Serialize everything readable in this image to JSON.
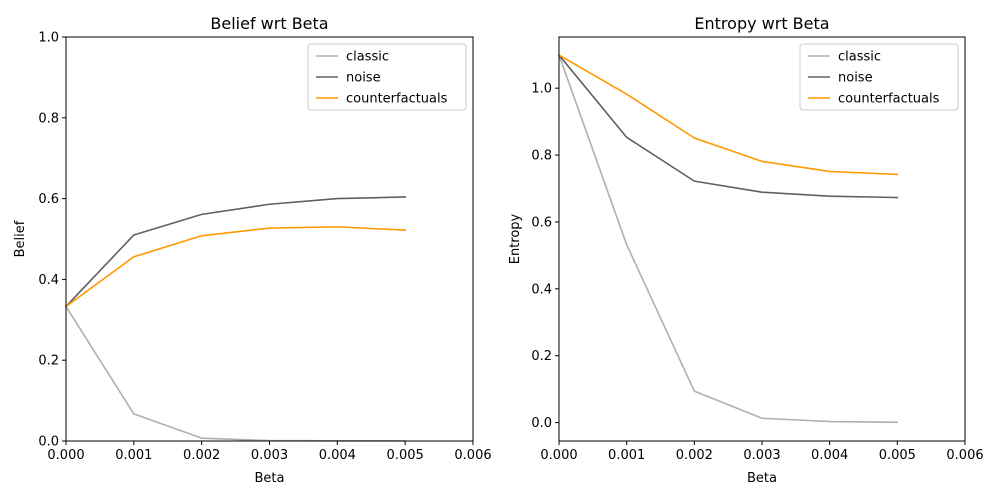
{
  "chart_data": [
    {
      "type": "line",
      "title": "Belief wrt Beta",
      "xlabel": "Beta",
      "ylabel": "Belief",
      "xlim": [
        0,
        0.006
      ],
      "ylim": [
        0,
        1.0
      ],
      "xticks": [
        0,
        0.001,
        0.002,
        0.003,
        0.004,
        0.005,
        0.006
      ],
      "xtick_labels": [
        "0.000",
        "0.001",
        "0.002",
        "0.003",
        "0.004",
        "0.005",
        "0.006"
      ],
      "yticks": [
        0,
        0.2,
        0.4,
        0.6,
        0.8,
        1.0
      ],
      "ytick_labels": [
        "0.0",
        "0.2",
        "0.4",
        "0.6",
        "0.8",
        "1.0"
      ],
      "legend_position": "top-right",
      "grid": false,
      "x": [
        0,
        0.001,
        0.002,
        0.003,
        0.004,
        0.005
      ],
      "series": [
        {
          "name": "classic",
          "color": "#b0b0b0",
          "values": [
            0.333,
            0.067,
            0.007,
            0.001,
            0.0005,
            0.0003
          ]
        },
        {
          "name": "noise",
          "color": "#606060",
          "values": [
            0.333,
            0.51,
            0.561,
            0.586,
            0.6,
            0.604
          ]
        },
        {
          "name": "counterfactuals",
          "color": "#ff9900",
          "values": [
            0.333,
            0.456,
            0.508,
            0.527,
            0.53,
            0.522
          ]
        }
      ]
    },
    {
      "type": "line",
      "title": "Entropy wrt Beta",
      "xlabel": "Beta",
      "ylabel": "Entropy",
      "xlim": [
        0,
        0.006
      ],
      "ylim": [
        -0.055,
        1.153
      ],
      "xticks": [
        0,
        0.001,
        0.002,
        0.003,
        0.004,
        0.005,
        0.006
      ],
      "xtick_labels": [
        "0.000",
        "0.001",
        "0.002",
        "0.003",
        "0.004",
        "0.005",
        "0.006"
      ],
      "yticks": [
        0,
        0.2,
        0.4,
        0.6,
        0.8,
        1.0
      ],
      "ytick_labels": [
        "0.0",
        "0.2",
        "0.4",
        "0.6",
        "0.8",
        "1.0"
      ],
      "legend_position": "top-right",
      "grid": false,
      "x": [
        0,
        0.001,
        0.002,
        0.003,
        0.004,
        0.005
      ],
      "series": [
        {
          "name": "classic",
          "color": "#b0b0b0",
          "values": [
            1.099,
            0.532,
            0.094,
            0.013,
            0.003,
            0.001
          ]
        },
        {
          "name": "noise",
          "color": "#606060",
          "values": [
            1.099,
            0.853,
            0.722,
            0.689,
            0.677,
            0.673
          ]
        },
        {
          "name": "counterfactuals",
          "color": "#ff9900",
          "values": [
            1.099,
            0.982,
            0.851,
            0.781,
            0.751,
            0.742
          ]
        }
      ]
    }
  ]
}
